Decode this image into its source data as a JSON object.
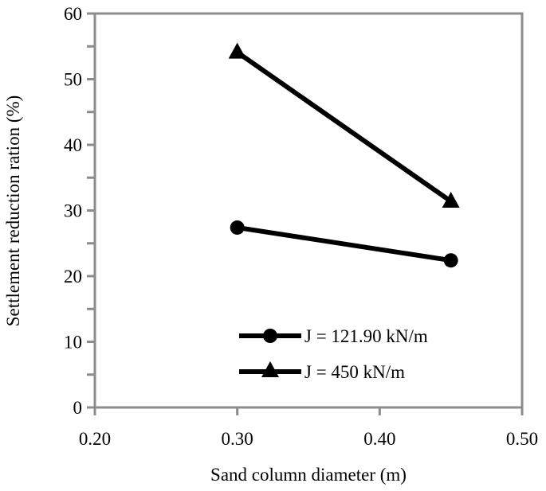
{
  "chart_data": {
    "type": "line",
    "title": "",
    "xlabel": "Sand column diameter (m)",
    "ylabel": "Settlement reduction ration (%)",
    "xlim": [
      0.2,
      0.5
    ],
    "ylim": [
      0,
      60
    ],
    "x_ticks": [
      "0.20",
      "0.30",
      "0.40",
      "0.50"
    ],
    "y_ticks": [
      "0",
      "10",
      "20",
      "30",
      "40",
      "50",
      "60"
    ],
    "grid": false,
    "legend_position": "lower right inside plot",
    "x": [
      0.3,
      0.45
    ],
    "series": [
      {
        "name": "J = 121.90 kN/m",
        "marker": "circle",
        "color": "#000000",
        "values": [
          27.4,
          22.4
        ]
      },
      {
        "name": "J = 450 kN/m",
        "marker": "triangle",
        "color": "#000000",
        "values": [
          54.1,
          31.4
        ]
      }
    ]
  },
  "colors": {
    "axis": "#8c8c8c",
    "series": "#000000"
  }
}
